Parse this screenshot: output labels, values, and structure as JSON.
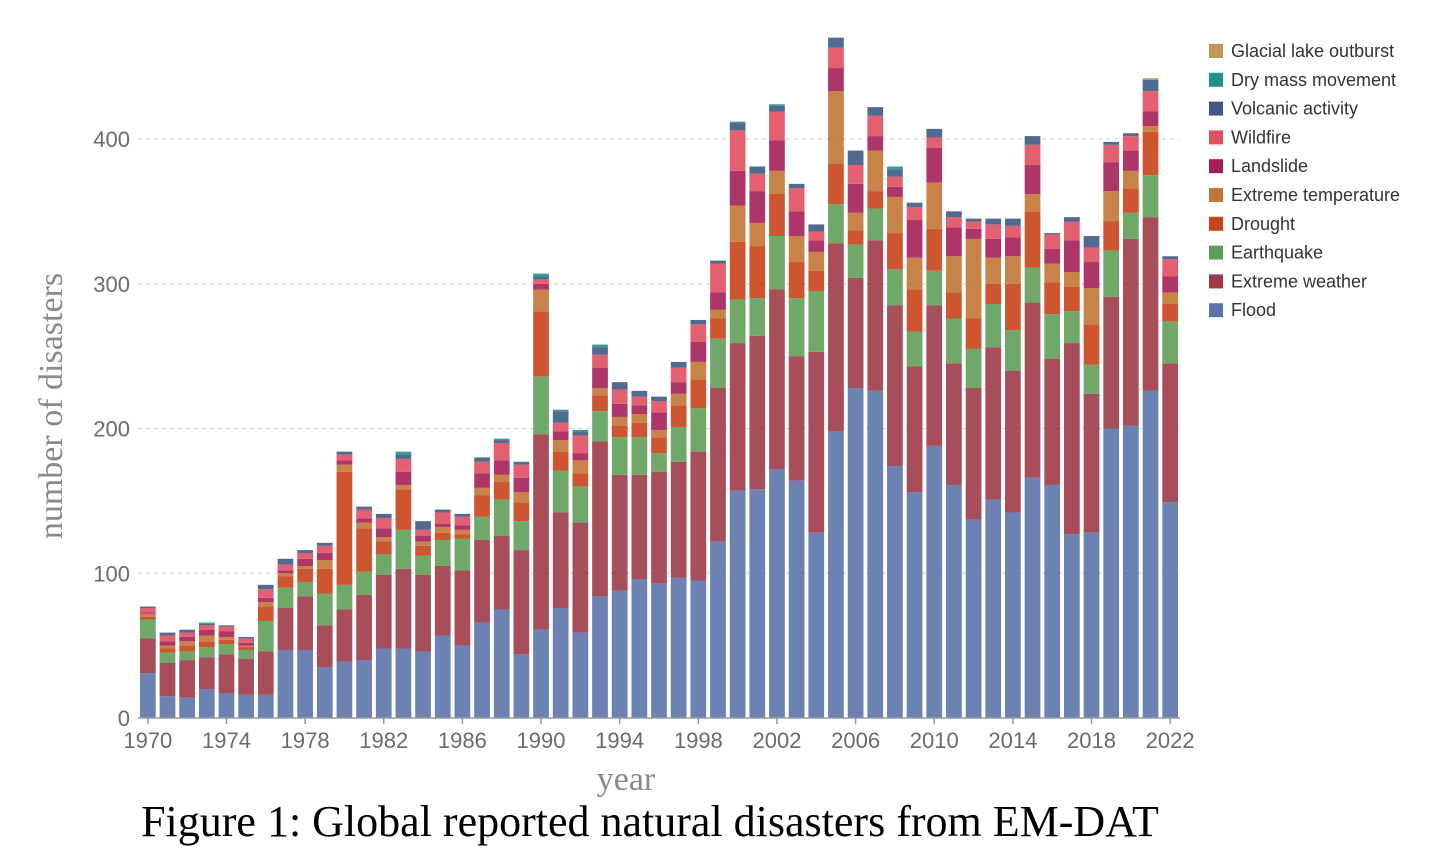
{
  "caption": "Figure 1: Global reported natural disasters from EM-DAT",
  "chart_data": {
    "type": "bar",
    "stacked": true,
    "xlabel": "year",
    "ylabel": "number of disasters",
    "ylim": [
      0,
      470
    ],
    "yticks": [
      0,
      100,
      200,
      300,
      400
    ],
    "xtick_labels": [
      "1970",
      "1974",
      "1978",
      "1982",
      "1986",
      "1990",
      "1994",
      "1998",
      "2002",
      "2006",
      "2010",
      "2014",
      "2018",
      "2022"
    ],
    "grid": "horizontal dashed",
    "legend_position": "right",
    "categories": [
      "1970",
      "1971",
      "1972",
      "1973",
      "1974",
      "1975",
      "1976",
      "1977",
      "1978",
      "1979",
      "1980",
      "1981",
      "1982",
      "1983",
      "1984",
      "1985",
      "1986",
      "1987",
      "1988",
      "1989",
      "1990",
      "1991",
      "1992",
      "1993",
      "1994",
      "1995",
      "1996",
      "1997",
      "1998",
      "1999",
      "2000",
      "2001",
      "2002",
      "2003",
      "2004",
      "2005",
      "2006",
      "2007",
      "2008",
      "2009",
      "2010",
      "2011",
      "2012",
      "2013",
      "2014",
      "2015",
      "2016",
      "2017",
      "2018",
      "2019",
      "2020",
      "2021",
      "2022"
    ],
    "series": [
      {
        "name": "Flood",
        "color": "#5b74aa",
        "values": [
          31,
          15,
          14,
          20,
          17,
          16,
          16,
          47,
          47,
          35,
          39,
          40,
          48,
          48,
          46,
          57,
          50,
          66,
          75,
          44,
          61,
          76,
          59,
          84,
          88,
          96,
          93,
          97,
          95,
          122,
          157,
          158,
          172,
          164,
          128,
          198,
          228,
          226,
          174,
          156,
          188,
          161,
          137,
          151,
          142,
          166,
          161,
          127,
          128,
          200,
          202,
          226,
          149
        ]
      },
      {
        "name": "Extreme weather",
        "color": "#9e3a48",
        "values": [
          24,
          23,
          26,
          22,
          27,
          25,
          30,
          29,
          37,
          29,
          36,
          45,
          51,
          55,
          53,
          48,
          52,
          57,
          51,
          72,
          135,
          66,
          76,
          107,
          80,
          72,
          77,
          80,
          89,
          106,
          102,
          106,
          124,
          86,
          125,
          130,
          76,
          104,
          111,
          87,
          97,
          84,
          91,
          105,
          98,
          121,
          87,
          132,
          96,
          91,
          129,
          120,
          96
        ]
      },
      {
        "name": "Earthquake",
        "color": "#5f9e58",
        "values": [
          13,
          7,
          6,
          7,
          7,
          6,
          21,
          14,
          10,
          22,
          17,
          16,
          14,
          27,
          13,
          18,
          22,
          16,
          25,
          20,
          40,
          29,
          25,
          21,
          26,
          26,
          13,
          24,
          30,
          34,
          30,
          26,
          37,
          40,
          42,
          27,
          23,
          22,
          25,
          24,
          24,
          31,
          27,
          30,
          28,
          24,
          31,
          22,
          20,
          32,
          18,
          29,
          29
        ]
      },
      {
        "name": "Drought",
        "color": "#c8441a",
        "values": [
          2,
          3,
          4,
          4,
          3,
          2,
          10,
          8,
          9,
          17,
          78,
          30,
          9,
          28,
          7,
          5,
          3,
          15,
          12,
          13,
          45,
          13,
          9,
          11,
          8,
          10,
          11,
          15,
          20,
          14,
          40,
          36,
          29,
          25,
          14,
          28,
          10,
          12,
          25,
          29,
          29,
          18,
          21,
          14,
          32,
          39,
          22,
          17,
          28,
          20,
          17,
          30,
          12
        ]
      },
      {
        "name": "Extreme temperature",
        "color": "#c27634",
        "values": [
          2,
          2,
          3,
          4,
          2,
          1,
          3,
          2,
          2,
          6,
          5,
          4,
          3,
          3,
          3,
          4,
          3,
          5,
          5,
          7,
          15,
          8,
          9,
          5,
          6,
          6,
          5,
          8,
          12,
          6,
          25,
          16,
          16,
          18,
          13,
          50,
          12,
          28,
          25,
          22,
          32,
          25,
          55,
          18,
          19,
          12,
          13,
          10,
          25,
          21,
          12,
          4,
          8
        ]
      },
      {
        "name": "Landslide",
        "color": "#a41f58",
        "values": [
          1,
          3,
          3,
          4,
          4,
          2,
          3,
          2,
          5,
          5,
          3,
          3,
          6,
          9,
          4,
          2,
          3,
          10,
          10,
          10,
          4,
          6,
          5,
          14,
          9,
          6,
          12,
          8,
          14,
          12,
          24,
          22,
          21,
          17,
          8,
          16,
          20,
          10,
          7,
          26,
          24,
          20,
          7,
          13,
          13,
          20,
          10,
          22,
          18,
          20,
          14,
          10,
          11
        ]
      },
      {
        "name": "Wildfire",
        "color": "#e14f62",
        "values": [
          3,
          4,
          3,
          3,
          3,
          3,
          6,
          4,
          4,
          5,
          4,
          6,
          7,
          9,
          4,
          8,
          6,
          8,
          12,
          9,
          3,
          6,
          12,
          9,
          10,
          6,
          8,
          10,
          12,
          20,
          28,
          12,
          20,
          16,
          6,
          14,
          13,
          14,
          7,
          9,
          7,
          7,
          5,
          10,
          8,
          14,
          10,
          13,
          10,
          12,
          10,
          14,
          12
        ]
      },
      {
        "name": "Volcanic activity",
        "color": "#3e5a84",
        "values": [
          1,
          2,
          2,
          1,
          1,
          1,
          3,
          4,
          2,
          2,
          2,
          2,
          3,
          3,
          6,
          2,
          2,
          3,
          2,
          2,
          2,
          8,
          3,
          5,
          5,
          4,
          3,
          4,
          3,
          2,
          5,
          5,
          4,
          3,
          5,
          7,
          10,
          6,
          5,
          3,
          6,
          4,
          2,
          4,
          5,
          6,
          1,
          3,
          8,
          2,
          2,
          8,
          2
        ]
      },
      {
        "name": "Dry mass movement",
        "color": "#20938c",
        "values": [
          0,
          0,
          0,
          1,
          0,
          0,
          0,
          0,
          0,
          0,
          0,
          0,
          0,
          2,
          0,
          0,
          0,
          0,
          1,
          0,
          2,
          1,
          1,
          2,
          0,
          0,
          0,
          0,
          0,
          0,
          1,
          0,
          1,
          0,
          0,
          0,
          0,
          0,
          2,
          0,
          0,
          0,
          0,
          0,
          0,
          0,
          0,
          0,
          0,
          0,
          0,
          0,
          0
        ]
      },
      {
        "name": "Glacial lake outburst",
        "color": "#c4965a",
        "values": [
          0,
          0,
          0,
          0,
          0,
          0,
          0,
          0,
          0,
          0,
          0,
          0,
          0,
          0,
          0,
          0,
          0,
          0,
          0,
          0,
          0,
          0,
          0,
          0,
          0,
          0,
          0,
          0,
          0,
          0,
          0,
          0,
          0,
          0,
          0,
          0,
          0,
          0,
          0,
          0,
          0,
          0,
          0,
          0,
          0,
          0,
          0,
          0,
          0,
          0,
          0,
          1,
          0
        ]
      }
    ]
  }
}
